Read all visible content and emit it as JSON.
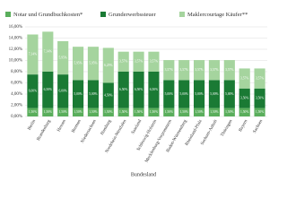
{
  "chart_data": {
    "type": "stacked_bar",
    "x_label": "Bundesland",
    "categories": [
      "Berlin",
      "Brandenburg",
      "Hessen",
      "Bremen",
      "Niedersachsen",
      "Hamburg",
      "Nordrhein-Westfalen",
      "Saarland",
      "Schleswig-Holstein",
      "Mecklenburg-Vorpommern",
      "Baden-Württemberg",
      "Rheinland-Pfalz",
      "Sachsen-Anhalt",
      "Thüringen",
      "Bayern",
      "Sachsen"
    ],
    "series": [
      {
        "name": "Notar und Grundbuchkosten*",
        "color": "#5aae5c",
        "values": [
          1.5,
          1.5,
          1.5,
          1.5,
          1.5,
          1.5,
          1.5,
          1.5,
          1.5,
          1.5,
          1.5,
          1.5,
          1.5,
          1.5,
          1.5,
          1.5
        ],
        "value_labels": [
          "1,50%",
          "1,50%",
          "1,50%",
          "1,50%",
          "1,50%",
          "1,50%",
          "1,50%",
          "1,50%",
          "1,50%",
          "1,50%",
          "1,50%",
          "1,50%",
          "1,50%",
          "1,50%",
          "1,50%",
          "1,50%"
        ]
      },
      {
        "name": "Grunderwerbssteuer",
        "color": "#1a7a34",
        "values": [
          6,
          6.5,
          6,
          5,
          5,
          4.5,
          6.5,
          6.5,
          6.5,
          5,
          5,
          5,
          5,
          5,
          3.5,
          3.5
        ],
        "value_labels": [
          "6,00%",
          "6,50%",
          "6,00%",
          "5,00%",
          "5,00%",
          "4,50%",
          "6,50%",
          "6,50%",
          "6,50%",
          "5,00%",
          "5,00%",
          "5,00%",
          "5,00%",
          "5,00%",
          "3,50%",
          "3,50%"
        ]
      },
      {
        "name": "Maklercourtage Käufer**",
        "color": "#a5d49e",
        "values": [
          7.14,
          7.14,
          5.95,
          5.95,
          5.95,
          6.25,
          3.57,
          3.57,
          3.57,
          3.57,
          3.57,
          3.57,
          3.57,
          3.57,
          3.57,
          3.57
        ],
        "value_labels": [
          "7,14%",
          "7,14%",
          "5,95%",
          "5,95%",
          "5,95%",
          "6,25%",
          "3,57%",
          "3,57%",
          "3,57%",
          "3,57%",
          "3,57%",
          "3,57%",
          "3,57%",
          "3,57%",
          "3,57%",
          "3,57%"
        ]
      }
    ],
    "ylim": [
      0,
      16
    ],
    "yticks": [
      {
        "value": 0,
        "label": "0,00%"
      },
      {
        "value": 2,
        "label": "2,00%"
      },
      {
        "value": 4,
        "label": "4,00%"
      },
      {
        "value": 6,
        "label": "6,00%"
      },
      {
        "value": 8,
        "label": "8,00%"
      },
      {
        "value": 10,
        "label": "10,00%"
      },
      {
        "value": 12,
        "label": "12,00%"
      },
      {
        "value": 14,
        "label": "14,00%"
      },
      {
        "value": 16,
        "label": "16,00%"
      }
    ],
    "grid": true
  }
}
